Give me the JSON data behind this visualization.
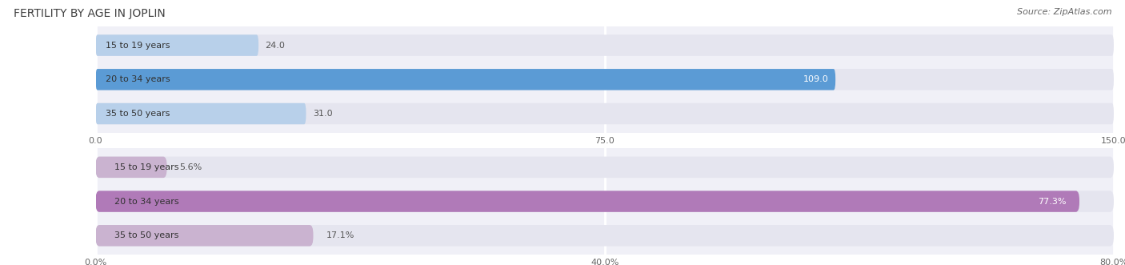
{
  "title": "FERTILITY BY AGE IN JOPLIN",
  "source": "Source: ZipAtlas.com",
  "top_section": {
    "categories": [
      "15 to 19 years",
      "20 to 34 years",
      "35 to 50 years"
    ],
    "values": [
      24.0,
      109.0,
      31.0
    ],
    "xlim": [
      0,
      150
    ],
    "xticks": [
      0.0,
      75.0,
      150.0
    ],
    "xtick_labels": [
      "0.0",
      "75.0",
      "150.0"
    ],
    "bar_color_light": "#b8d0ea",
    "bar_color_dark": "#5b9bd5",
    "label_inside_color": "#ffffff",
    "label_outside_color": "#555555"
  },
  "bottom_section": {
    "categories": [
      "15 to 19 years",
      "20 to 34 years",
      "35 to 50 years"
    ],
    "values": [
      5.6,
      77.3,
      17.1
    ],
    "xlim": [
      0,
      80
    ],
    "xticks": [
      0.0,
      40.0,
      80.0
    ],
    "xtick_labels": [
      "0.0%",
      "40.0%",
      "80.0%"
    ],
    "bar_color_light": "#cab3d0",
    "bar_color_dark": "#b07ab8",
    "label_inside_color": "#ffffff",
    "label_outside_color": "#555555"
  },
  "fig_bg_color": "#ffffff",
  "panel_bg_color": "#f0f0f7",
  "bar_bg_color": "#e5e5ef",
  "title_fontsize": 10,
  "source_fontsize": 8,
  "label_fontsize": 8,
  "tick_fontsize": 8,
  "cat_fontsize": 8,
  "bar_height": 0.62,
  "grid_color": "#ffffff",
  "grid_linewidth": 2.0,
  "bar_rounding": 0.28
}
